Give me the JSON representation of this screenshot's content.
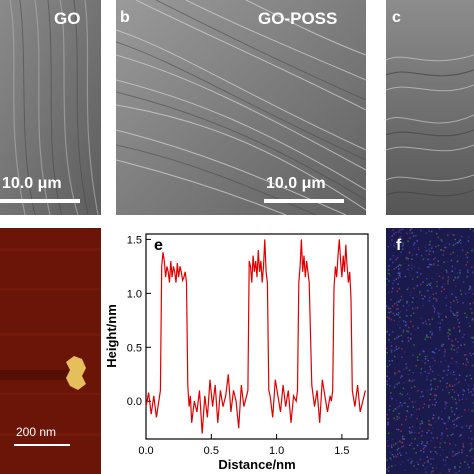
{
  "panels": {
    "a": {
      "sample_label": "GO",
      "scale_text": "10.0 μm"
    },
    "b": {
      "panel_label": "b",
      "sample_label": "GO-POSS",
      "scale_text": "10.0 μm"
    },
    "c": {
      "panel_label": "c"
    },
    "afm": {
      "scale_text": "200 nm"
    },
    "f": {
      "panel_label": "f"
    }
  },
  "colors": {
    "sem_gray": "#6e6e6e",
    "afm_background": "#6b1508",
    "afm_feature": "#e6bf5c",
    "eds_background": "#1a1a4d",
    "chart_line": "#e00000"
  },
  "chart_data": {
    "type": "line",
    "panel_label": "e",
    "xlabel": "Distance/nm",
    "ylabel": "Height/nm",
    "xlim": [
      0,
      1.7
    ],
    "ylim": [
      -0.35,
      1.55
    ],
    "xticks": [
      "0.0",
      "0.5",
      "1.0",
      "1.5"
    ],
    "xtick_values": [
      0,
      0.5,
      1.0,
      1.5
    ],
    "yticks": [
      "0.0",
      "0.5",
      "1.0",
      "1.5"
    ],
    "ytick_values": [
      0,
      0.5,
      1.0,
      1.5
    ],
    "series": [
      {
        "values_x": [
          0.0,
          0.02,
          0.04,
          0.06,
          0.08,
          0.1,
          0.11,
          0.12,
          0.13,
          0.14,
          0.15,
          0.16,
          0.17,
          0.18,
          0.19,
          0.2,
          0.21,
          0.22,
          0.23,
          0.24,
          0.25,
          0.26,
          0.27,
          0.28,
          0.29,
          0.3,
          0.31,
          0.32,
          0.33,
          0.34,
          0.35,
          0.37,
          0.39,
          0.41,
          0.43,
          0.45,
          0.47,
          0.49,
          0.51,
          0.53,
          0.55,
          0.57,
          0.59,
          0.61,
          0.63,
          0.65,
          0.67,
          0.69,
          0.71,
          0.73,
          0.75,
          0.77,
          0.78,
          0.79,
          0.8,
          0.81,
          0.82,
          0.83,
          0.84,
          0.85,
          0.86,
          0.87,
          0.88,
          0.89,
          0.9,
          0.91,
          0.92,
          0.93,
          0.94,
          0.95,
          0.97,
          0.99,
          1.01,
          1.03,
          1.05,
          1.07,
          1.09,
          1.11,
          1.13,
          1.15,
          1.16,
          1.17,
          1.18,
          1.19,
          1.2,
          1.21,
          1.22,
          1.23,
          1.24,
          1.25,
          1.27,
          1.29,
          1.31,
          1.33,
          1.35,
          1.37,
          1.39,
          1.41,
          1.42,
          1.43,
          1.44,
          1.45,
          1.46,
          1.47,
          1.48,
          1.49,
          1.5,
          1.51,
          1.52,
          1.53,
          1.54,
          1.55,
          1.56,
          1.57,
          1.58,
          1.6,
          1.62,
          1.64,
          1.66,
          1.68
        ],
        "values_y": [
          -0.05,
          0.08,
          -0.12,
          0.05,
          -0.15,
          0.02,
          0.1,
          1.25,
          1.38,
          1.3,
          1.15,
          1.25,
          1.2,
          1.1,
          1.3,
          1.15,
          1.25,
          1.2,
          1.1,
          1.28,
          1.15,
          1.25,
          1.2,
          1.12,
          1.15,
          1.2,
          1.1,
          0.15,
          -0.05,
          0.05,
          -0.2,
          0.0,
          -0.1,
          0.1,
          -0.3,
          0.05,
          -0.15,
          0.2,
          -0.05,
          0.15,
          -0.2,
          0.1,
          -0.05,
          0.05,
          0.25,
          -0.1,
          0.1,
          0.0,
          -0.25,
          0.15,
          -0.05,
          0.05,
          0.1,
          1.3,
          1.25,
          1.1,
          1.35,
          1.2,
          1.3,
          1.15,
          1.4,
          1.2,
          1.3,
          1.1,
          1.25,
          1.5,
          1.2,
          1.1,
          0.1,
          0.05,
          -0.15,
          0.2,
          0.05,
          -0.1,
          0.15,
          -0.05,
          0.1,
          -0.2,
          0.05,
          0.0,
          0.1,
          1.1,
          1.25,
          1.5,
          1.2,
          1.35,
          1.15,
          1.3,
          1.2,
          1.1,
          0.15,
          -0.05,
          0.1,
          -0.2,
          0.2,
          0.05,
          -0.1,
          0.05,
          0.0,
          0.1,
          1.05,
          1.25,
          1.15,
          1.35,
          1.5,
          1.3,
          1.15,
          1.35,
          1.2,
          1.45,
          1.25,
          1.1,
          1.2,
          0.95,
          0.1,
          -0.05,
          0.15,
          -0.1,
          0.0,
          0.1
        ]
      }
    ]
  }
}
